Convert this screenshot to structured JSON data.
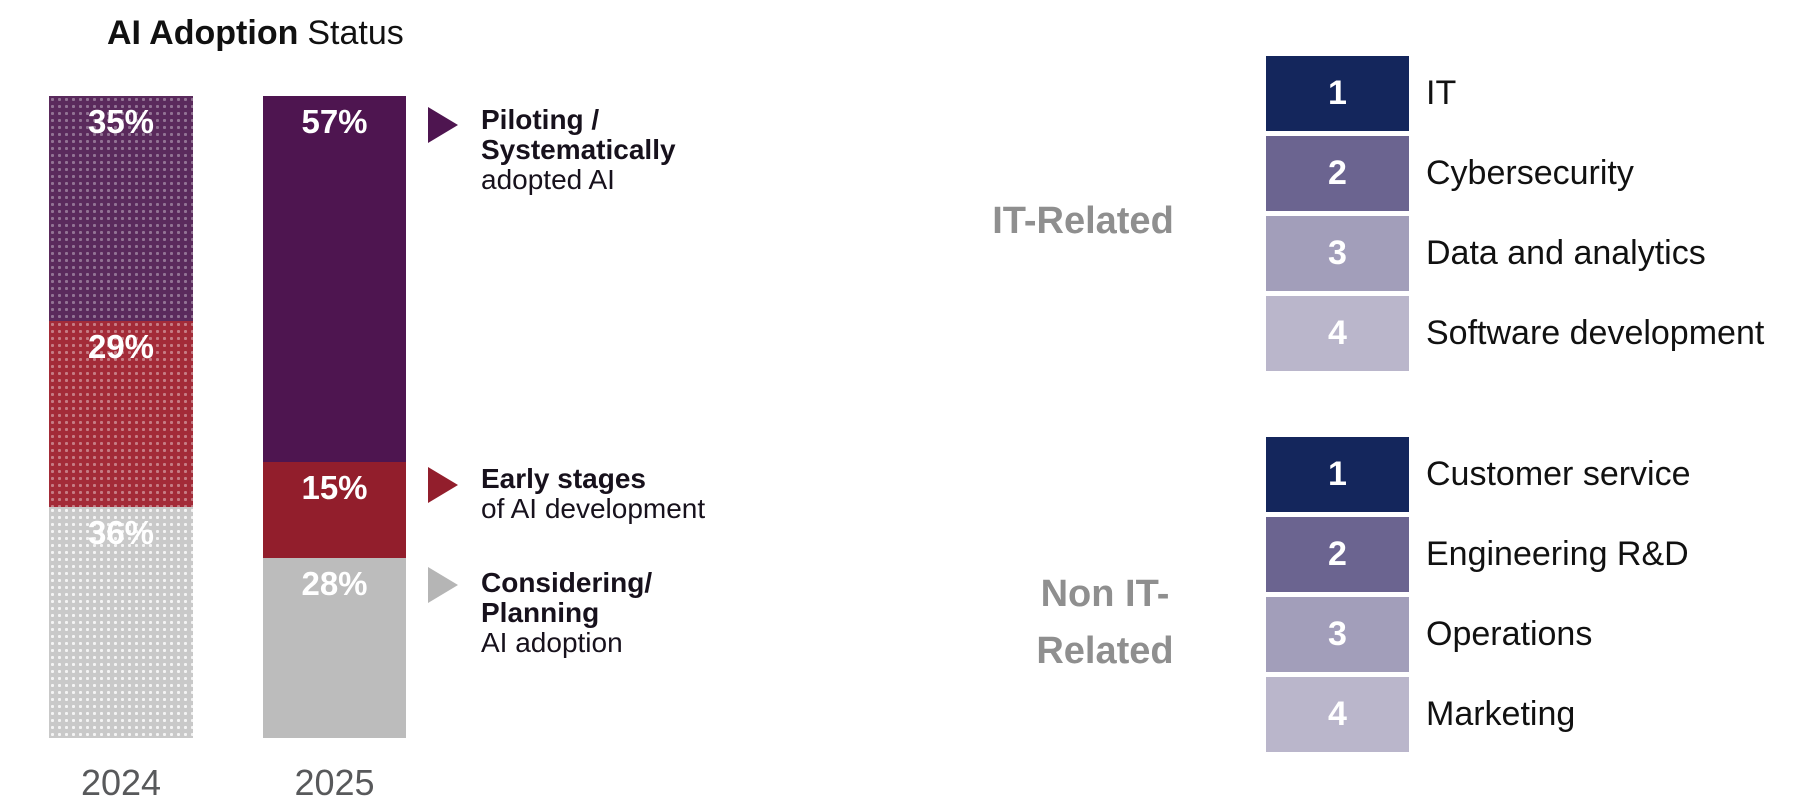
{
  "title": {
    "bold": "AI Adoption",
    "regular": "Status"
  },
  "chart_data": {
    "type": "bar",
    "stacked": true,
    "unit": "percent",
    "title": "AI Adoption Status",
    "categories": [
      "2024",
      "2025"
    ],
    "series": [
      {
        "name": "Piloting / Systematically adopted AI",
        "values": [
          35,
          57
        ],
        "labels": [
          "35%",
          "57%"
        ],
        "color_2025": "#4e1550",
        "color_2024": "#5a2a5c"
      },
      {
        "name": "Early stages of AI development",
        "values": [
          29,
          15
        ],
        "labels": [
          "29%",
          "15%"
        ],
        "color_2025": "#921e2c",
        "color_2024": "#a32b38"
      },
      {
        "name": "Considering / Planning AI adoption",
        "values": [
          36,
          28
        ],
        "labels": [
          "36%",
          "28%"
        ],
        "color_2025": "#bcbcbc",
        "color_2024": "#c9c9c9"
      }
    ],
    "style_notes": {
      "2024": "segments drawn with light halftone dot pattern",
      "2025": "segments drawn solid"
    },
    "ylim": [
      0,
      100
    ],
    "grid": false,
    "legend_position": "right of 2025 bar, arrow markers"
  },
  "legend": {
    "items": [
      {
        "arrow": "purple-right-triangle",
        "bold1": "Piloting /",
        "bold2": "Systematically",
        "regular": "adopted AI"
      },
      {
        "arrow": "red-right-triangle",
        "bold1": "Early stages",
        "regular": "of AI development"
      },
      {
        "arrow": "gray-right-triangle",
        "bold1": "Considering/",
        "bold2": "Planning",
        "regular": "AI adoption"
      }
    ]
  },
  "rankings": [
    {
      "group": "IT-Related",
      "line1": "IT-Related",
      "items": [
        {
          "rank": "1",
          "label": "IT"
        },
        {
          "rank": "2",
          "label": "Cybersecurity"
        },
        {
          "rank": "3",
          "label": "Data and analytics"
        },
        {
          "rank": "4",
          "label": "Software development"
        }
      ]
    },
    {
      "group": "Non IT-Related",
      "line1": "Non IT-",
      "line2": "Related",
      "items": [
        {
          "rank": "1",
          "label": "Customer service"
        },
        {
          "rank": "2",
          "label": "Engineering R&D"
        },
        {
          "rank": "3",
          "label": "Operations"
        },
        {
          "rank": "4",
          "label": "Marketing"
        }
      ]
    }
  ],
  "colors": {
    "purple_solid": "#4e1550",
    "purple_dotted_base": "#5a2a5c",
    "red_solid": "#921e2c",
    "red_dotted_base": "#a32b38",
    "gray_solid": "#bcbcbc",
    "gray_dotted_base": "#c9c9c9",
    "rank_1_navy": "#14265c",
    "rank_2": "#6b6490",
    "rank_3": "#a29eba",
    "rank_4": "#bab6cb",
    "group_label_gray": "#8f8f8f",
    "year_label_gray": "#58595b"
  }
}
